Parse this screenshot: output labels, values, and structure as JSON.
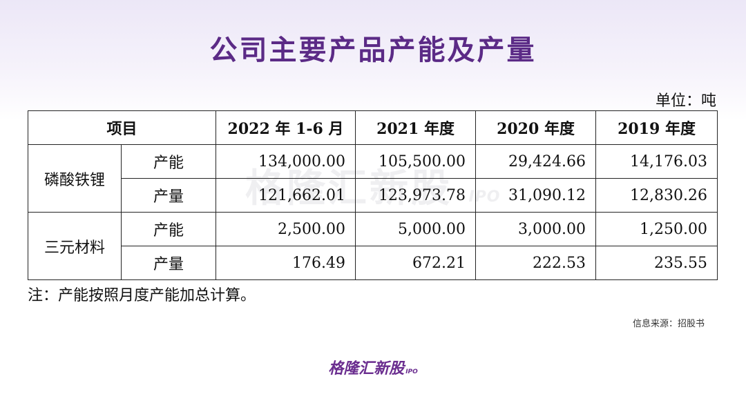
{
  "title": "公司主要产品产能及产量",
  "unit": "单位：吨",
  "table": {
    "header": {
      "item": "项目",
      "cols": [
        "2022 年 1-6 月",
        "2021 年度",
        "2020 年度",
        "2019 年度"
      ]
    },
    "groups": [
      {
        "category": "磷酸铁锂",
        "rows": [
          {
            "metric": "产能",
            "values": [
              "134,000.00",
              "105,500.00",
              "29,424.66",
              "14,176.03"
            ]
          },
          {
            "metric": "产量",
            "values": [
              "121,662.01",
              "123,973.78",
              "31,090.12",
              "12,830.26"
            ]
          }
        ]
      },
      {
        "category": "三元材料",
        "rows": [
          {
            "metric": "产能",
            "values": [
              "2,500.00",
              "5,000.00",
              "3,000.00",
              "1,250.00"
            ]
          },
          {
            "metric": "产量",
            "values": [
              "176.49",
              "672.21",
              "222.53",
              "235.55"
            ]
          }
        ]
      }
    ]
  },
  "note": "注：产能按照月度产能加总计算。",
  "source": "信息来源：招股书",
  "watermark": {
    "text": "格隆汇新股",
    "ipo": "IPO"
  },
  "logo": {
    "text": "格隆汇新股",
    "ipo": "IPO"
  }
}
